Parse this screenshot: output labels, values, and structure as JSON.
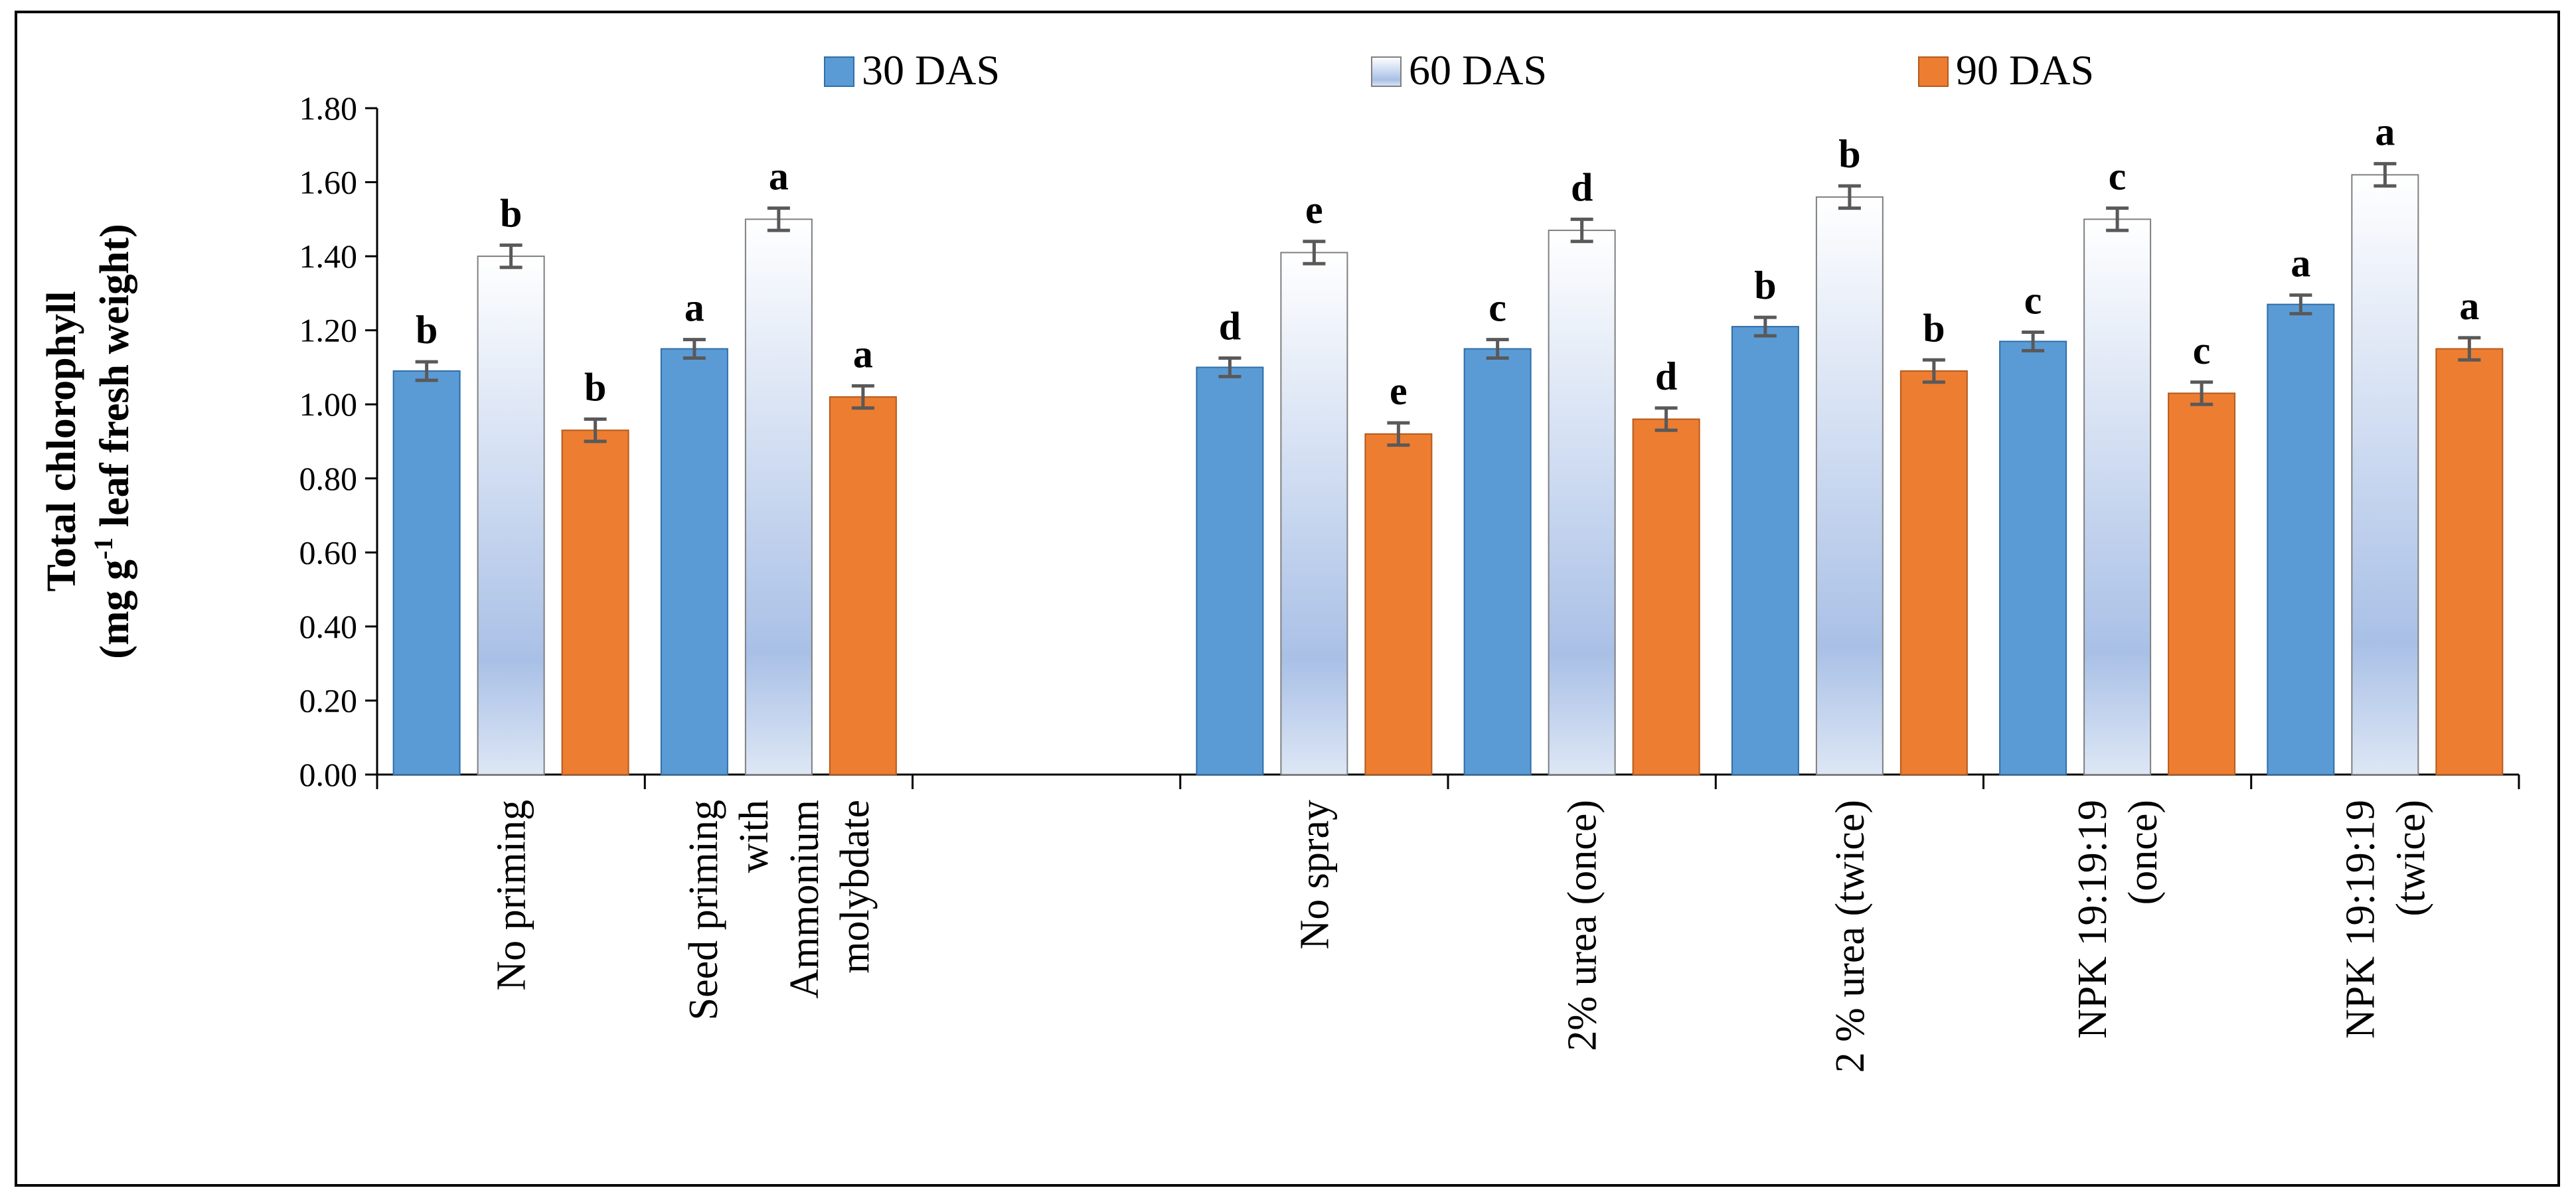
{
  "chart_data": {
    "type": "bar",
    "title": "",
    "xlabel": "",
    "ylabel": {
      "line1": "Total chlorophyll",
      "line2_prefix": "(mg g",
      "line2_sup": "-1",
      "line2_suffix": " leaf fresh weight)"
    },
    "ylim": [
      0,
      1.8
    ],
    "yticks": [
      "0.00",
      "0.20",
      "0.40",
      "0.60",
      "0.80",
      "1.00",
      "1.20",
      "1.40",
      "1.60",
      "1.80"
    ],
    "grid": false,
    "legend_position": "top-center",
    "categories": [
      [
        "No priming"
      ],
      [
        "Seed priming",
        "with",
        "Ammonium",
        "molybdate"
      ],
      [],
      [
        "No spray"
      ],
      [
        "2% urea (once)"
      ],
      [
        "2 % urea (twice)"
      ],
      [
        "NPK 19:19:19",
        "(once)"
      ],
      [
        "NPK 19:19:19",
        "(twice)"
      ]
    ],
    "series": [
      {
        "name": "30 DAS",
        "color": "#5b9bd5",
        "values": [
          1.09,
          1.15,
          null,
          1.1,
          1.15,
          1.21,
          1.17,
          1.27
        ],
        "errors": [
          0.025,
          0.025,
          null,
          0.025,
          0.025,
          0.025,
          0.025,
          0.025
        ],
        "letters": [
          "b",
          "a",
          null,
          "d",
          "c",
          "b",
          "c",
          "a"
        ]
      },
      {
        "name": "60 DAS",
        "color": "#dbe5f5",
        "values": [
          1.4,
          1.5,
          null,
          1.41,
          1.47,
          1.56,
          1.5,
          1.62
        ],
        "errors": [
          0.03,
          0.03,
          null,
          0.03,
          0.03,
          0.03,
          0.03,
          0.03
        ],
        "letters": [
          "b",
          "a",
          null,
          "e",
          "d",
          "b",
          "c",
          "a"
        ]
      },
      {
        "name": "90 DAS",
        "color": "#ed7d31",
        "values": [
          0.93,
          1.02,
          null,
          0.92,
          0.96,
          1.09,
          1.03,
          1.15
        ],
        "errors": [
          0.03,
          0.03,
          null,
          0.03,
          0.03,
          0.03,
          0.03,
          0.03
        ],
        "letters": [
          "b",
          "a",
          null,
          "e",
          "d",
          "b",
          "c",
          "a"
        ]
      }
    ]
  }
}
